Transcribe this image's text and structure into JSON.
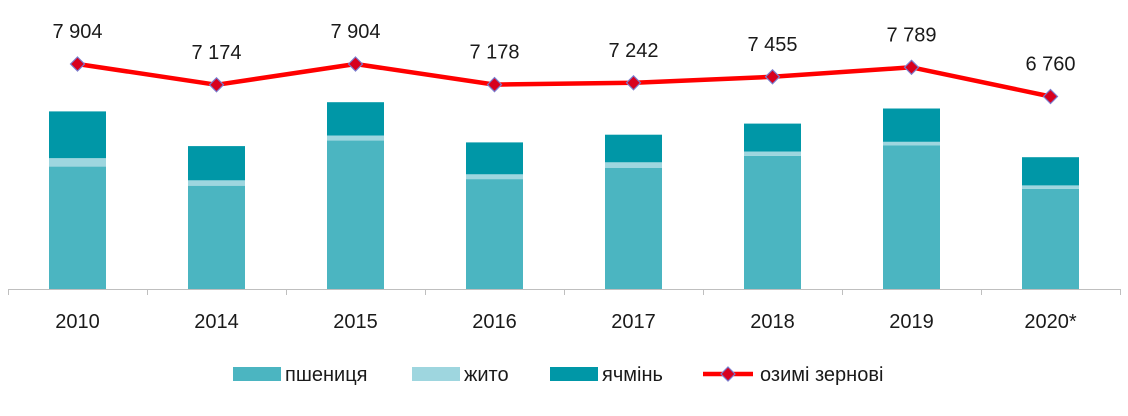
{
  "chart_data": {
    "type": "bar",
    "stacked": true,
    "categories": [
      "2010",
      "2014",
      "2015",
      "2016",
      "2017",
      "2018",
      "2019",
      "2020*"
    ],
    "series": [
      {
        "name": "пшениця",
        "kind": "bar",
        "color": "#4BB5C1",
        "values": [
          4300,
          3630,
          5220,
          3860,
          4250,
          4680,
          5040,
          3520
        ]
      },
      {
        "name": "жито",
        "kind": "bar",
        "color": "#9ED6DF",
        "values": [
          300,
          190,
          170,
          170,
          200,
          150,
          130,
          120
        ]
      },
      {
        "name": "ячмінь",
        "kind": "bar",
        "color": "#0097A7",
        "values": [
          1640,
          1200,
          1170,
          1120,
          970,
          980,
          1170,
          990
        ]
      },
      {
        "name": "озимі зернові",
        "kind": "line",
        "color": "#FF0000",
        "marker_color": "#D8001E",
        "values": [
          7904,
          7174,
          7904,
          7178,
          7242,
          7455,
          7789,
          6760
        ],
        "labels": [
          "7 904",
          "7 174",
          "7 904",
          "7 178",
          "7 242",
          "7 455",
          "7 789",
          "6 760"
        ]
      }
    ],
    "ylim": [
      0,
      9800
    ],
    "grid": false,
    "legend_position": "bottom"
  }
}
